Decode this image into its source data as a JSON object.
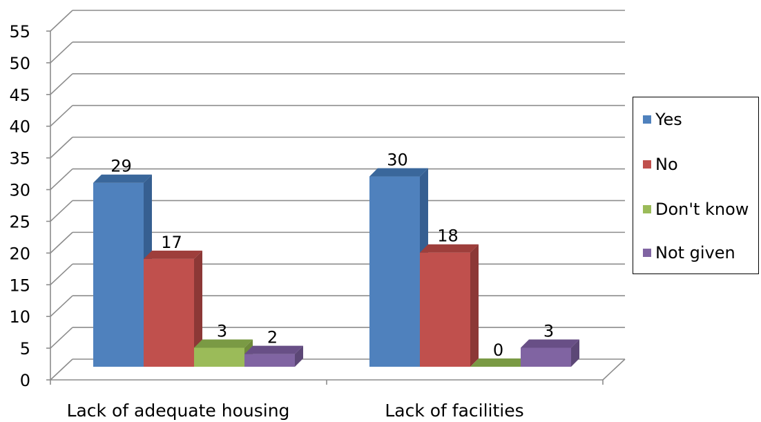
{
  "chart_data": {
    "type": "bar",
    "categories": [
      "Lack of adequate housing",
      "Lack of facilities"
    ],
    "series": [
      {
        "name": "Yes",
        "values": [
          29,
          30
        ],
        "color": "#4F81BD",
        "side": "#365F91",
        "top": "#3A679B"
      },
      {
        "name": "No",
        "values": [
          17,
          18
        ],
        "color": "#C0504D",
        "side": "#8C3836",
        "top": "#9E3E3B"
      },
      {
        "name": "Don't know",
        "values": [
          3,
          0
        ],
        "color": "#9BBB59",
        "side": "#6E8A3A",
        "top": "#7A9A44"
      },
      {
        "name": "Not given",
        "values": [
          2,
          3
        ],
        "color": "#8064A2",
        "side": "#5C4776",
        "top": "#684F86"
      }
    ],
    "ylim": [
      0,
      55
    ],
    "yticks": [
      "0",
      "5",
      "10",
      "15",
      "20",
      "25",
      "30",
      "35",
      "40",
      "45",
      "50",
      "55"
    ],
    "grid": true,
    "legend_position": "right",
    "data_labels": true
  }
}
